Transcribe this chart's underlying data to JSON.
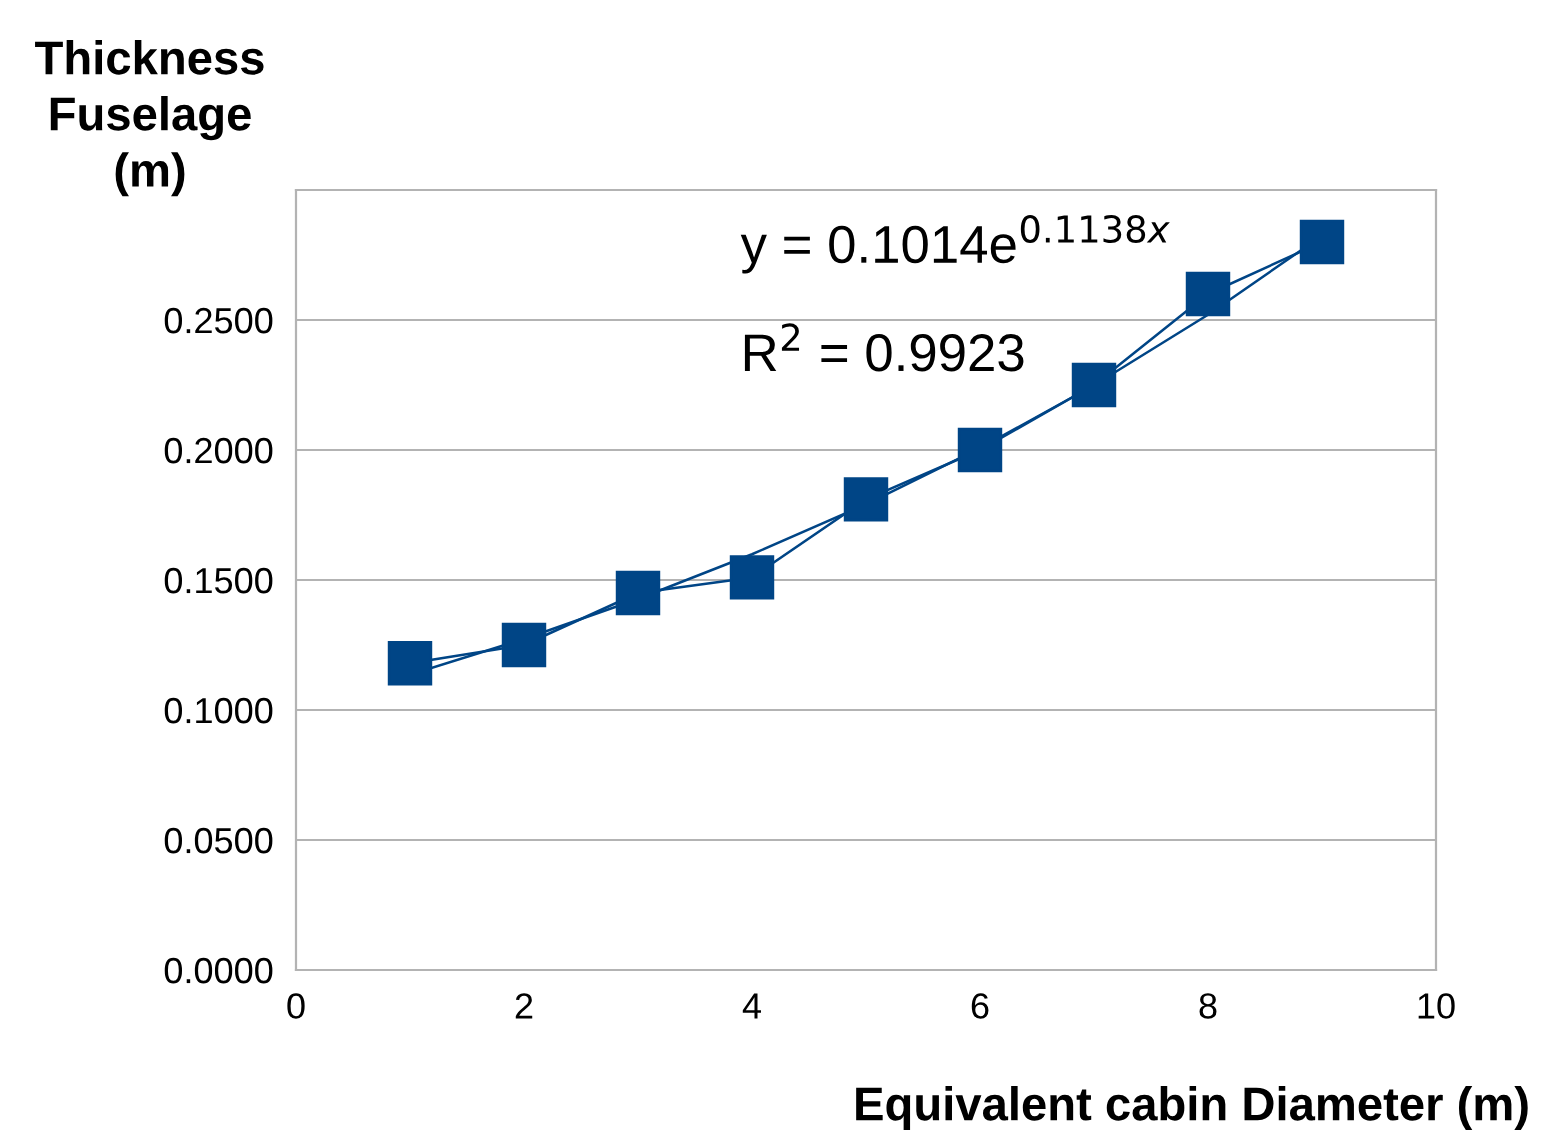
{
  "chart_data": {
    "type": "line",
    "ylabel": "Thickness\nFuselage\n(m)",
    "xlabel": "Equivalent cabin Diameter (m)",
    "x": [
      1,
      2,
      3,
      4,
      5,
      6,
      7,
      8,
      9
    ],
    "series": [
      {
        "color": "#004586",
        "marker": "square",
        "values": [
          0.118,
          0.125,
          0.145,
          0.151,
          0.181,
          0.2,
          0.225,
          0.26,
          0.28
        ]
      },
      {
        "type": "line",
        "color": "#004586",
        "marker": "none",
        "x": [
          1,
          2,
          3,
          4,
          5,
          6,
          7,
          8,
          9
        ],
        "values": [
          0.1136,
          0.1273,
          0.1427,
          0.1599,
          0.1791,
          0.2007,
          0.2249,
          0.252,
          0.2824
        ]
      }
    ],
    "annotations": [
      "y = 0.1014e$^{0.1138x}$",
      "R$^{2}$ = 0.9923"
    ],
    "xlim": [
      0,
      10
    ],
    "xticks": [
      0,
      2,
      4,
      6,
      8,
      10
    ],
    "ylim": [
      0,
      0.3
    ],
    "yticks": [
      {
        "value": 0,
        "label": "0.0000"
      },
      {
        "value": 0.05,
        "label": "0.0500"
      },
      {
        "value": 0.1,
        "label": "0.1000"
      },
      {
        "value": 0.15,
        "label": "0.1500"
      },
      {
        "value": 0.2,
        "label": "0.2000"
      },
      {
        "value": 0.25,
        "label": "0.2500"
      },
      {
        "value": 0.3,
        "label": null
      }
    ],
    "grid": "y",
    "legend": false
  }
}
